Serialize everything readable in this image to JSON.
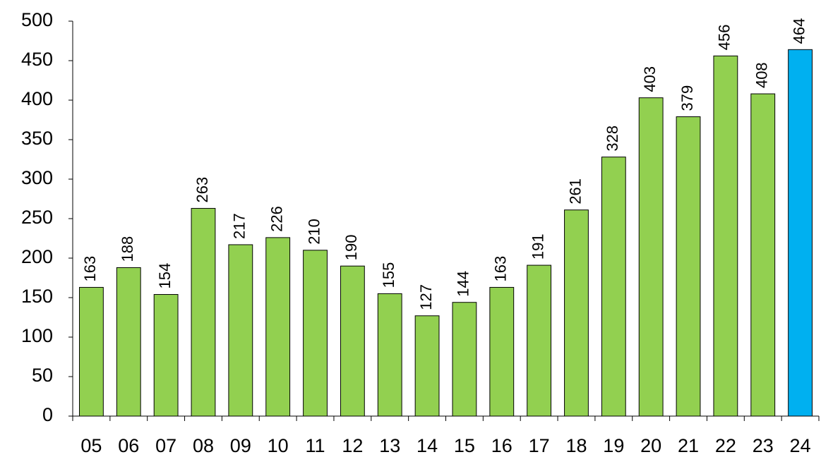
{
  "chart_data": {
    "type": "bar",
    "categories": [
      "05",
      "06",
      "07",
      "08",
      "09",
      "10",
      "11",
      "12",
      "13",
      "14",
      "15",
      "16",
      "17",
      "18",
      "19",
      "20",
      "21",
      "22",
      "23",
      "24"
    ],
    "values": [
      163,
      188,
      154,
      263,
      217,
      226,
      210,
      190,
      155,
      127,
      144,
      163,
      191,
      261,
      328,
      403,
      379,
      456,
      408,
      464
    ],
    "colors": [
      "#92d050",
      "#92d050",
      "#92d050",
      "#92d050",
      "#92d050",
      "#92d050",
      "#92d050",
      "#92d050",
      "#92d050",
      "#92d050",
      "#92d050",
      "#92d050",
      "#92d050",
      "#92d050",
      "#92d050",
      "#92d050",
      "#92d050",
      "#92d050",
      "#92d050",
      "#00b0f0"
    ],
    "ylim": [
      0,
      500
    ],
    "yticks": [
      0,
      50,
      100,
      150,
      200,
      250,
      300,
      350,
      400,
      450,
      500
    ],
    "grid": false
  }
}
